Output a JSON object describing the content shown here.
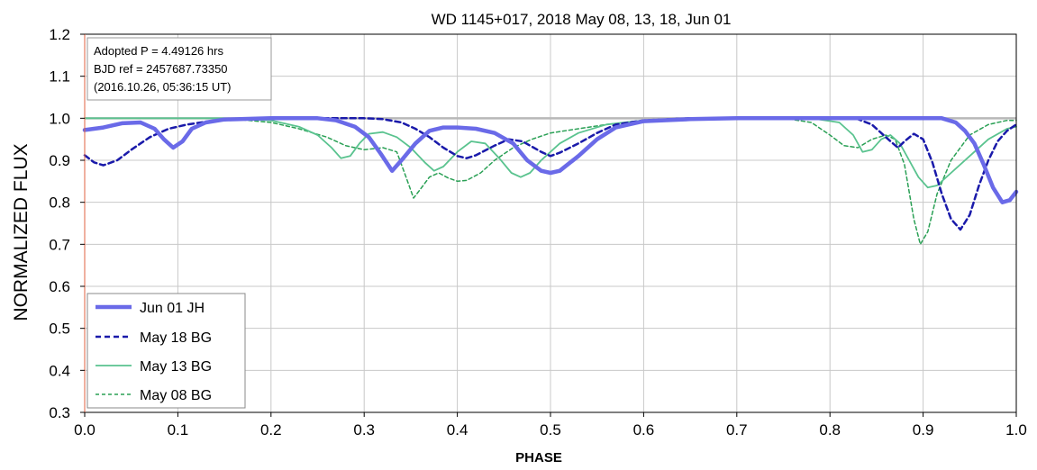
{
  "chart_data": {
    "type": "line",
    "title": "WD 1145+017, 2018 May 08, 13, 18, Jun 01",
    "xlabel": "PHASE",
    "ylabel": "NORMALIZED FLUX",
    "xlim": [
      0.0,
      1.0
    ],
    "ylim": [
      0.3,
      1.2
    ],
    "x_ticks": [
      "0.0",
      "0.1",
      "0.2",
      "0.3",
      "0.4",
      "0.5",
      "0.6",
      "0.7",
      "0.8",
      "0.9",
      "1.0"
    ],
    "y_ticks": [
      "0.3",
      "0.4",
      "0.5",
      "0.6",
      "0.7",
      "0.8",
      "0.9",
      "1.0",
      "1.1",
      "1.2"
    ],
    "grid": true,
    "reference_line": 1.0,
    "legend_position": "bottom-left",
    "annotation": [
      "Adopted P = 4.49126 hrs",
      "BJD ref = 2457687.73350",
      "(2016.10.26, 05:36:15 UT)"
    ],
    "series": [
      {
        "name": "Jun 01 JH",
        "color": "#6a6ae8",
        "style": "solid-thick",
        "points": [
          [
            0.0,
            0.972
          ],
          [
            0.02,
            0.978
          ],
          [
            0.04,
            0.988
          ],
          [
            0.06,
            0.99
          ],
          [
            0.075,
            0.975
          ],
          [
            0.085,
            0.95
          ],
          [
            0.095,
            0.93
          ],
          [
            0.105,
            0.945
          ],
          [
            0.115,
            0.975
          ],
          [
            0.13,
            0.99
          ],
          [
            0.15,
            0.997
          ],
          [
            0.2,
            1.0
          ],
          [
            0.25,
            1.0
          ],
          [
            0.27,
            0.995
          ],
          [
            0.29,
            0.98
          ],
          [
            0.305,
            0.955
          ],
          [
            0.318,
            0.915
          ],
          [
            0.33,
            0.875
          ],
          [
            0.342,
            0.905
          ],
          [
            0.355,
            0.94
          ],
          [
            0.37,
            0.97
          ],
          [
            0.385,
            0.978
          ],
          [
            0.4,
            0.978
          ],
          [
            0.42,
            0.975
          ],
          [
            0.44,
            0.965
          ],
          [
            0.46,
            0.94
          ],
          [
            0.475,
            0.9
          ],
          [
            0.49,
            0.875
          ],
          [
            0.5,
            0.87
          ],
          [
            0.51,
            0.875
          ],
          [
            0.53,
            0.91
          ],
          [
            0.55,
            0.95
          ],
          [
            0.57,
            0.978
          ],
          [
            0.6,
            0.993
          ],
          [
            0.65,
            0.998
          ],
          [
            0.7,
            1.0
          ],
          [
            0.8,
            1.0
          ],
          [
            0.88,
            1.0
          ],
          [
            0.92,
            1.0
          ],
          [
            0.935,
            0.99
          ],
          [
            0.945,
            0.97
          ],
          [
            0.955,
            0.94
          ],
          [
            0.965,
            0.89
          ],
          [
            0.975,
            0.835
          ],
          [
            0.985,
            0.8
          ],
          [
            0.993,
            0.805
          ],
          [
            1.0,
            0.825
          ]
        ]
      },
      {
        "name": "May 18 BG",
        "color": "#1a1aaa",
        "style": "dashed",
        "points": [
          [
            0.0,
            0.912
          ],
          [
            0.01,
            0.895
          ],
          [
            0.02,
            0.888
          ],
          [
            0.035,
            0.9
          ],
          [
            0.05,
            0.925
          ],
          [
            0.07,
            0.955
          ],
          [
            0.09,
            0.975
          ],
          [
            0.11,
            0.985
          ],
          [
            0.14,
            0.995
          ],
          [
            0.2,
            1.0
          ],
          [
            0.3,
            1.0
          ],
          [
            0.32,
            0.998
          ],
          [
            0.34,
            0.99
          ],
          [
            0.355,
            0.975
          ],
          [
            0.37,
            0.955
          ],
          [
            0.385,
            0.93
          ],
          [
            0.4,
            0.91
          ],
          [
            0.41,
            0.905
          ],
          [
            0.42,
            0.912
          ],
          [
            0.44,
            0.935
          ],
          [
            0.455,
            0.95
          ],
          [
            0.47,
            0.945
          ],
          [
            0.49,
            0.92
          ],
          [
            0.5,
            0.91
          ],
          [
            0.51,
            0.918
          ],
          [
            0.53,
            0.94
          ],
          [
            0.55,
            0.965
          ],
          [
            0.57,
            0.985
          ],
          [
            0.6,
            0.995
          ],
          [
            0.65,
            1.0
          ],
          [
            0.8,
            1.0
          ],
          [
            0.83,
            0.998
          ],
          [
            0.845,
            0.985
          ],
          [
            0.855,
            0.965
          ],
          [
            0.865,
            0.945
          ],
          [
            0.873,
            0.93
          ],
          [
            0.88,
            0.945
          ],
          [
            0.89,
            0.963
          ],
          [
            0.9,
            0.95
          ],
          [
            0.91,
            0.895
          ],
          [
            0.92,
            0.82
          ],
          [
            0.93,
            0.76
          ],
          [
            0.94,
            0.735
          ],
          [
            0.95,
            0.77
          ],
          [
            0.96,
            0.84
          ],
          [
            0.97,
            0.9
          ],
          [
            0.98,
            0.945
          ],
          [
            0.99,
            0.97
          ],
          [
            1.0,
            0.985
          ]
        ]
      },
      {
        "name": "May 13 BG",
        "color": "#5ac38f",
        "style": "solid",
        "points": [
          [
            0.0,
            1.0
          ],
          [
            0.15,
            1.0
          ],
          [
            0.2,
            0.995
          ],
          [
            0.23,
            0.98
          ],
          [
            0.25,
            0.96
          ],
          [
            0.265,
            0.93
          ],
          [
            0.275,
            0.905
          ],
          [
            0.285,
            0.91
          ],
          [
            0.295,
            0.94
          ],
          [
            0.305,
            0.963
          ],
          [
            0.32,
            0.967
          ],
          [
            0.335,
            0.955
          ],
          [
            0.35,
            0.93
          ],
          [
            0.365,
            0.895
          ],
          [
            0.375,
            0.875
          ],
          [
            0.385,
            0.885
          ],
          [
            0.4,
            0.92
          ],
          [
            0.415,
            0.945
          ],
          [
            0.43,
            0.94
          ],
          [
            0.445,
            0.905
          ],
          [
            0.458,
            0.87
          ],
          [
            0.468,
            0.86
          ],
          [
            0.478,
            0.87
          ],
          [
            0.49,
            0.9
          ],
          [
            0.51,
            0.94
          ],
          [
            0.53,
            0.965
          ],
          [
            0.56,
            0.985
          ],
          [
            0.6,
            0.995
          ],
          [
            0.65,
            1.0
          ],
          [
            0.78,
            1.0
          ],
          [
            0.81,
            0.99
          ],
          [
            0.825,
            0.96
          ],
          [
            0.835,
            0.92
          ],
          [
            0.845,
            0.925
          ],
          [
            0.855,
            0.95
          ],
          [
            0.865,
            0.96
          ],
          [
            0.875,
            0.94
          ],
          [
            0.885,
            0.9
          ],
          [
            0.895,
            0.86
          ],
          [
            0.905,
            0.835
          ],
          [
            0.915,
            0.84
          ],
          [
            0.93,
            0.87
          ],
          [
            0.95,
            0.91
          ],
          [
            0.97,
            0.95
          ],
          [
            0.99,
            0.975
          ],
          [
            1.0,
            0.98
          ]
        ]
      },
      {
        "name": "May 08 BG",
        "color": "#2aa055",
        "style": "dashed-thin",
        "points": [
          [
            0.0,
            1.0
          ],
          [
            0.15,
            1.0
          ],
          [
            0.2,
            0.99
          ],
          [
            0.23,
            0.975
          ],
          [
            0.26,
            0.955
          ],
          [
            0.28,
            0.935
          ],
          [
            0.3,
            0.925
          ],
          [
            0.32,
            0.93
          ],
          [
            0.335,
            0.92
          ],
          [
            0.345,
            0.86
          ],
          [
            0.353,
            0.81
          ],
          [
            0.36,
            0.83
          ],
          [
            0.37,
            0.86
          ],
          [
            0.38,
            0.87
          ],
          [
            0.39,
            0.858
          ],
          [
            0.4,
            0.85
          ],
          [
            0.41,
            0.852
          ],
          [
            0.425,
            0.87
          ],
          [
            0.44,
            0.9
          ],
          [
            0.46,
            0.93
          ],
          [
            0.48,
            0.95
          ],
          [
            0.5,
            0.965
          ],
          [
            0.53,
            0.975
          ],
          [
            0.56,
            0.985
          ],
          [
            0.6,
            0.995
          ],
          [
            0.65,
            1.0
          ],
          [
            0.75,
            1.0
          ],
          [
            0.78,
            0.99
          ],
          [
            0.8,
            0.96
          ],
          [
            0.815,
            0.935
          ],
          [
            0.83,
            0.93
          ],
          [
            0.845,
            0.95
          ],
          [
            0.86,
            0.96
          ],
          [
            0.87,
            0.95
          ],
          [
            0.88,
            0.89
          ],
          [
            0.89,
            0.76
          ],
          [
            0.897,
            0.7
          ],
          [
            0.905,
            0.73
          ],
          [
            0.915,
            0.82
          ],
          [
            0.93,
            0.9
          ],
          [
            0.95,
            0.96
          ],
          [
            0.97,
            0.985
          ],
          [
            0.99,
            0.995
          ],
          [
            1.0,
            0.995
          ]
        ]
      }
    ]
  }
}
